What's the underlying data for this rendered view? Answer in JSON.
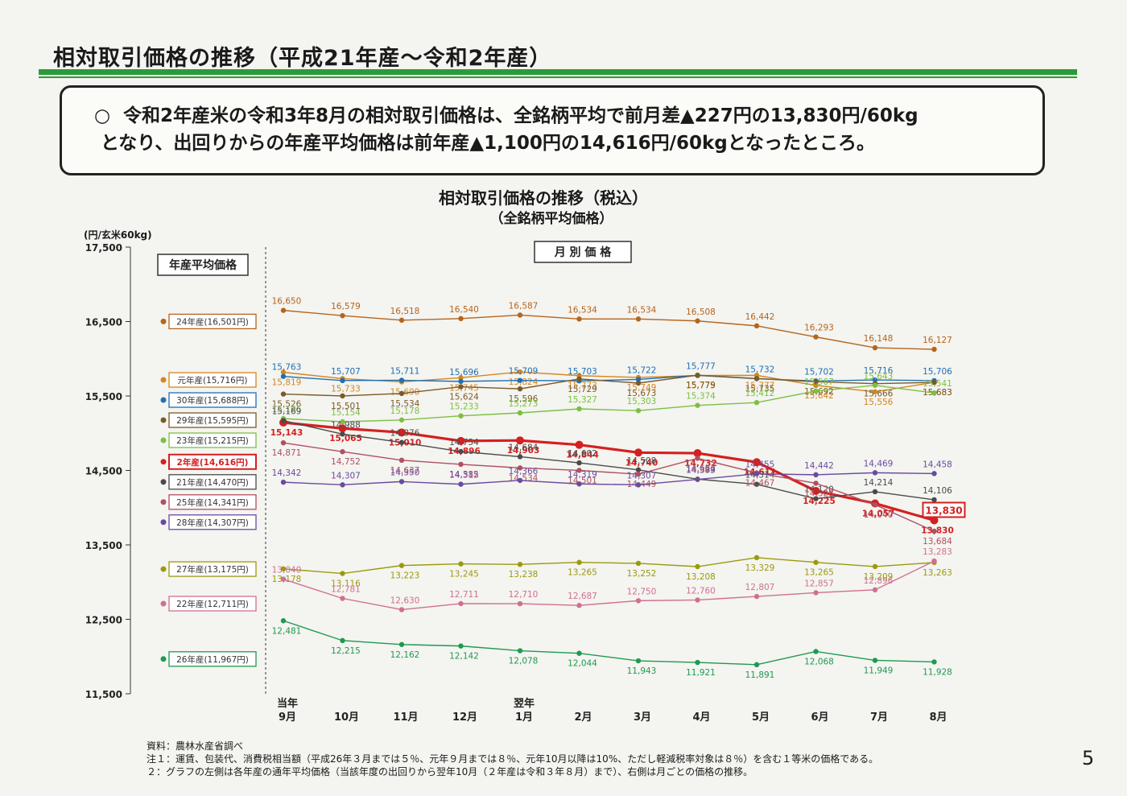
{
  "page": {
    "title": "相対取引価格の推移（平成21年産～令和2年産）",
    "summary_bullet": "○",
    "summary_line1": "令和2年産米の令和3年8月の相対取引価格は、全銘柄平均で前月差▲227円の13,830円/60kg",
    "summary_line2": "となり、出回りからの年産平均価格は前年産▲1,100円の14,616円/60kgとなったところ。",
    "page_number": "5"
  },
  "notes": {
    "source": "資料：農林水産省調べ",
    "note1": "注１：運賃、包装代、消費税相当額（平成26年３月までは５％、元年９月までは８％、元年10月以降は10%、ただし軽減税率対象は８％）を含む１等米の価格である。",
    "note2": "２：グラフの左側は各年産の通年平均価格（当該年度の出回りから翌年10月（２年産は令和３年８月）まで）、右側は月ごとの価格の推移。"
  },
  "chart_data": {
    "type": "line",
    "title": "相対取引価格の推移（税込）",
    "subtitle": "（全銘柄平均価格）",
    "unit_label": "(円/玄米60kg)",
    "left_panel_label": "年産平均価格",
    "right_panel_label": "月 別 価 格",
    "ylim": [
      11500,
      17500
    ],
    "yticks": [
      11500,
      12500,
      13500,
      14500,
      15500,
      16500,
      17500
    ],
    "ytick_labels": [
      "11,500",
      "12,500",
      "13,500",
      "14,500",
      "15,500",
      "16,500",
      "17,500"
    ],
    "categories": [
      "9月",
      "10月",
      "11月",
      "12月",
      "1月",
      "2月",
      "3月",
      "4月",
      "5月",
      "6月",
      "7月",
      "8月"
    ],
    "category_prefixes": [
      "当年",
      "",
      "",
      "",
      "翌年",
      "",
      "",
      "",
      "",
      "",
      "",
      ""
    ],
    "series": [
      {
        "name": "24年産(16,501円)",
        "avg": 16501,
        "color": "#b5651d",
        "values": [
          16650,
          16579,
          16518,
          16540,
          16587,
          16534,
          16534,
          16508,
          16442,
          16293,
          16148,
          16127
        ]
      },
      {
        "name": "元年産(15,716円)",
        "avg": 15716,
        "color": "#d4861e",
        "values": [
          15819,
          15733,
          15690,
          15745,
          15824,
          15773,
          15749,
          15775,
          15777,
          15642,
          15556,
          15683
        ]
      },
      {
        "name": "30年産(15,688円)",
        "avg": 15688,
        "color": "#1f6fb5",
        "values": [
          15763,
          15707,
          15711,
          15696,
          15709,
          15703,
          15722,
          15777,
          15732,
          15702,
          15716,
          15706
        ]
      },
      {
        "name": "29年産(15,595円)",
        "avg": 15595,
        "color": "#7a5a2a",
        "values": [
          15526,
          15501,
          15534,
          15624,
          15596,
          15729,
          15673,
          15779,
          15735,
          15692,
          15666,
          15683
        ]
      },
      {
        "name": "23年産(15,215円)",
        "avg": 15215,
        "color": "#7bc043",
        "values": [
          15196,
          15154,
          15178,
          15233,
          15273,
          15327,
          15303,
          15374,
          15412,
          15567,
          15643,
          15541
        ]
      },
      {
        "name": "2年産(14,616円)",
        "avg": 14616,
        "color": "#d42020",
        "values": [
          15143,
          15065,
          15010,
          14896,
          14903,
          14844,
          14740,
          14732,
          14611,
          14225,
          14057,
          13830
        ]
      },
      {
        "name": "21年産(14,470円)",
        "avg": 14470,
        "color": "#4a4a4a",
        "values": [
          15169,
          14988,
          14876,
          14754,
          14684,
          14602,
          14508,
          14383,
          14314,
          14120,
          14214,
          14106
        ]
      },
      {
        "name": "25年産(14,341円)",
        "avg": 14341,
        "color": "#b05060",
        "values": [
          14871,
          14752,
          14637,
          14582,
          14534,
          14501,
          14449,
          14663,
          14467,
          14328,
          14040,
          13684
        ]
      },
      {
        "name": "28年産(14,307円)",
        "avg": 14307,
        "color": "#6a4aa0",
        "values": [
          14342,
          14307,
          14350,
          14315,
          14366,
          14319,
          14307,
          14379,
          14455,
          14442,
          14469,
          14458
        ]
      },
      {
        "name": "27年産(13,175円)",
        "avg": 13175,
        "color": "#9a9a10",
        "values": [
          13178,
          13116,
          13223,
          13245,
          13238,
          13265,
          13252,
          13208,
          13329,
          13265,
          13209,
          13263
        ]
      },
      {
        "name": "22年産(12,711円)",
        "avg": 12711,
        "color": "#d07090",
        "values": [
          13040,
          12781,
          12630,
          12711,
          12710,
          12687,
          12750,
          12760,
          12807,
          12857,
          12896,
          13283
        ]
      },
      {
        "name": "26年産(11,967円)",
        "avg": 11967,
        "color": "#1e9a50",
        "values": [
          12481,
          12215,
          12162,
          12142,
          12078,
          12044,
          11943,
          11921,
          11891,
          12068,
          11949,
          11928
        ]
      }
    ],
    "highlight_label": "13,830"
  }
}
